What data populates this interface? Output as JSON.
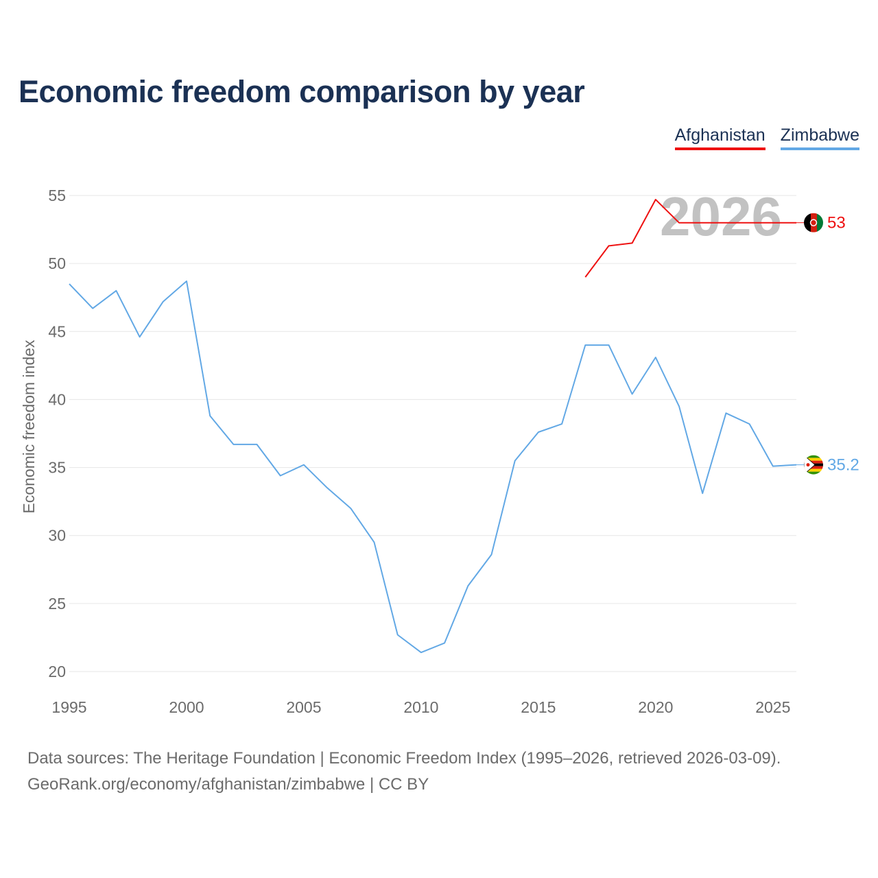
{
  "chart_data": {
    "type": "line",
    "title": "Economic freedom comparison by year",
    "ylabel": "Economic freedom index",
    "xlabel": "",
    "xlim": [
      1995,
      2026
    ],
    "ylim": [
      20,
      55
    ],
    "xticks": [
      1995,
      2000,
      2005,
      2010,
      2015,
      2020,
      2025
    ],
    "yticks": [
      20,
      25,
      30,
      35,
      40,
      45,
      50,
      55
    ],
    "year_watermark": "2026",
    "series": [
      {
        "name": "Afghanistan",
        "color": "#ee1111",
        "end_label": "53",
        "flag": "afghanistan-flag",
        "x": [
          2017,
          2018,
          2019,
          2020,
          2021,
          2026
        ],
        "values": [
          49.0,
          51.3,
          51.5,
          54.7,
          53.0,
          53.0
        ]
      },
      {
        "name": "Zimbabwe",
        "color": "#62a8e5",
        "end_label": "35.2",
        "flag": "zimbabwe-flag",
        "x": [
          1995,
          1996,
          1997,
          1998,
          1999,
          2000,
          2001,
          2002,
          2003,
          2004,
          2005,
          2006,
          2007,
          2008,
          2009,
          2010,
          2011,
          2012,
          2013,
          2014,
          2015,
          2016,
          2017,
          2018,
          2019,
          2020,
          2021,
          2022,
          2023,
          2024,
          2025,
          2026
        ],
        "values": [
          48.5,
          46.7,
          48.0,
          44.6,
          47.2,
          48.7,
          38.8,
          36.7,
          36.7,
          34.4,
          35.2,
          33.5,
          32.0,
          29.5,
          22.7,
          21.4,
          22.1,
          26.3,
          28.6,
          35.5,
          37.6,
          38.2,
          44.0,
          44.0,
          40.4,
          43.1,
          39.5,
          33.1,
          39.0,
          38.2,
          35.1,
          35.2
        ]
      }
    ]
  },
  "source": {
    "line1": "Data sources: The Heritage Foundation | Economic Freedom Index (1995–2026, retrieved 2026-03-09).",
    "line2": "GeoRank.org/economy/afghanistan/zimbabwe | CC BY"
  }
}
